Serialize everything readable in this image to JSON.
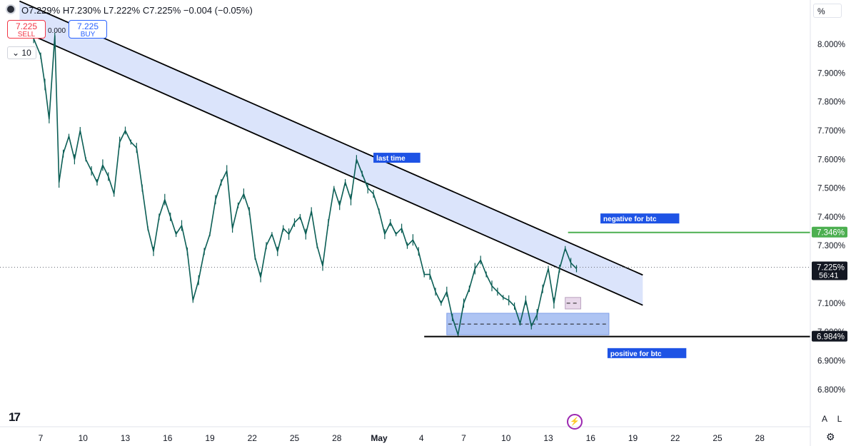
{
  "header": {
    "ohlc_text": "O7.229%  H7.230%  L7.222%  C7.225%  −0.004 (−0.05%)",
    "sell_price": "7.225",
    "sell_label": "SELL",
    "spread": "0.000",
    "buy_price": "7.225",
    "buy_label": "BUY",
    "quantity": "10",
    "scale_button": "%"
  },
  "footer": {
    "logo_text": "17",
    "auto_button": "A",
    "log_button": "L",
    "settings_icon": "gear-icon",
    "flash_icon": "lightning-icon"
  },
  "colors": {
    "candle": "#0b5e55",
    "channel_fill": "#dbe4fb",
    "zone_fill": "#aec4f3",
    "green_line": "#4caf50",
    "label_bg": "#1e53e5"
  },
  "chart_data": {
    "type": "line",
    "y_axis_unit": "%",
    "ylim": [
      6.73,
      8.16
    ],
    "y_ticks": [
      "8.000%",
      "7.900%",
      "7.800%",
      "7.700%",
      "7.600%",
      "7.500%",
      "7.400%",
      "7.300%",
      "7.100%",
      "7.000%",
      "6.900%",
      "6.800%"
    ],
    "x_ticks": [
      "7",
      "10",
      "13",
      "16",
      "19",
      "22",
      "25",
      "28",
      "May",
      "4",
      "7",
      "10",
      "13",
      "16",
      "19",
      "22",
      "25",
      "28"
    ],
    "x_tick_days": [
      7,
      10,
      13,
      16,
      19,
      22,
      25,
      28,
      31,
      34,
      37,
      40,
      43,
      46,
      49,
      52,
      55,
      58
    ],
    "series": [
      {
        "values": [
          [
            6.1,
            8.06
          ],
          [
            6.5,
            8.02
          ],
          [
            7.0,
            7.96
          ],
          [
            7.3,
            7.86
          ],
          [
            7.6,
            7.74
          ],
          [
            8.0,
            8.03
          ],
          [
            8.3,
            7.52
          ],
          [
            8.6,
            7.62
          ],
          [
            9.0,
            7.68
          ],
          [
            9.4,
            7.6
          ],
          [
            9.8,
            7.7
          ],
          [
            10.2,
            7.6
          ],
          [
            10.6,
            7.56
          ],
          [
            11.0,
            7.52
          ],
          [
            11.4,
            7.58
          ],
          [
            11.8,
            7.54
          ],
          [
            12.2,
            7.48
          ],
          [
            12.6,
            7.66
          ],
          [
            13.0,
            7.7
          ],
          [
            13.4,
            7.66
          ],
          [
            13.8,
            7.64
          ],
          [
            14.2,
            7.5
          ],
          [
            14.6,
            7.36
          ],
          [
            15.0,
            7.28
          ],
          [
            15.4,
            7.4
          ],
          [
            15.8,
            7.46
          ],
          [
            16.2,
            7.4
          ],
          [
            16.6,
            7.34
          ],
          [
            17.0,
            7.37
          ],
          [
            17.4,
            7.28
          ],
          [
            17.8,
            7.11
          ],
          [
            18.2,
            7.18
          ],
          [
            18.6,
            7.28
          ],
          [
            19.0,
            7.34
          ],
          [
            19.4,
            7.46
          ],
          [
            19.8,
            7.52
          ],
          [
            20.2,
            7.56
          ],
          [
            20.6,
            7.36
          ],
          [
            21.0,
            7.44
          ],
          [
            21.4,
            7.48
          ],
          [
            21.8,
            7.42
          ],
          [
            22.2,
            7.26
          ],
          [
            22.6,
            7.19
          ],
          [
            23.0,
            7.3
          ],
          [
            23.4,
            7.34
          ],
          [
            23.8,
            7.28
          ],
          [
            24.2,
            7.36
          ],
          [
            24.6,
            7.34
          ],
          [
            25.0,
            7.38
          ],
          [
            25.4,
            7.4
          ],
          [
            25.8,
            7.34
          ],
          [
            26.2,
            7.42
          ],
          [
            26.6,
            7.3
          ],
          [
            27.0,
            7.23
          ],
          [
            27.4,
            7.38
          ],
          [
            27.8,
            7.5
          ],
          [
            28.2,
            7.44
          ],
          [
            28.6,
            7.52
          ],
          [
            29.0,
            7.46
          ],
          [
            29.4,
            7.6
          ],
          [
            29.8,
            7.55
          ],
          [
            30.2,
            7.5
          ],
          [
            30.6,
            7.48
          ],
          [
            31.0,
            7.42
          ],
          [
            31.4,
            7.34
          ],
          [
            31.8,
            7.38
          ],
          [
            32.2,
            7.34
          ],
          [
            32.6,
            7.36
          ],
          [
            33.0,
            7.3
          ],
          [
            33.4,
            7.32
          ],
          [
            33.8,
            7.28
          ],
          [
            34.2,
            7.2
          ],
          [
            34.6,
            7.2
          ],
          [
            35.0,
            7.14
          ],
          [
            35.4,
            7.1
          ],
          [
            35.8,
            7.14
          ],
          [
            36.2,
            7.05
          ],
          [
            36.6,
            6.99
          ],
          [
            37.0,
            7.1
          ],
          [
            37.4,
            7.15
          ],
          [
            37.8,
            7.22
          ],
          [
            38.2,
            7.25
          ],
          [
            38.6,
            7.2
          ],
          [
            39.0,
            7.16
          ],
          [
            39.4,
            7.14
          ],
          [
            39.8,
            7.12
          ],
          [
            40.2,
            7.11
          ],
          [
            40.6,
            7.09
          ],
          [
            41.0,
            7.03
          ],
          [
            41.4,
            7.11
          ],
          [
            41.8,
            7.02
          ],
          [
            42.2,
            7.06
          ],
          [
            42.6,
            7.15
          ],
          [
            43.0,
            7.22
          ],
          [
            43.4,
            7.1
          ],
          [
            43.8,
            7.22
          ],
          [
            44.2,
            7.29
          ],
          [
            44.6,
            7.24
          ],
          [
            45.0,
            7.22
          ]
        ]
      }
    ],
    "annotations": [
      {
        "type": "label",
        "text": "last time",
        "at": [
          30.7,
          7.603
        ]
      },
      {
        "type": "label",
        "text": "negative for btc",
        "at": [
          46.8,
          7.392
        ]
      },
      {
        "type": "label",
        "text": "positive for btc",
        "at": [
          47.3,
          6.924
        ]
      },
      {
        "type": "channel_upper",
        "from": [
          5.5,
          8.15
        ],
        "to": [
          49.7,
          7.198
        ]
      },
      {
        "type": "channel_lower",
        "from": [
          5.5,
          8.05
        ],
        "to": [
          49.7,
          7.093
        ]
      },
      {
        "type": "hline",
        "name": "green_level",
        "value": 7.346,
        "x_from": 44.4
      },
      {
        "type": "hline",
        "name": "support",
        "value": 6.984,
        "x_from": 34.2
      },
      {
        "type": "zone",
        "from": [
          35.8,
          7.065
        ],
        "to": [
          47.3,
          6.99
        ]
      },
      {
        "type": "zone",
        "from": [
          44.2,
          7.12
        ],
        "to": [
          45.3,
          7.08
        ]
      }
    ],
    "price_labels": [
      {
        "text": "7.346%",
        "value": 7.346,
        "style": "green"
      },
      {
        "text": "7.225%",
        "sub": "56:41",
        "value": 7.225,
        "style": "dark"
      },
      {
        "text": "6.984%",
        "value": 6.984,
        "style": "dark"
      }
    ],
    "current_price": 7.225,
    "grid": false
  }
}
